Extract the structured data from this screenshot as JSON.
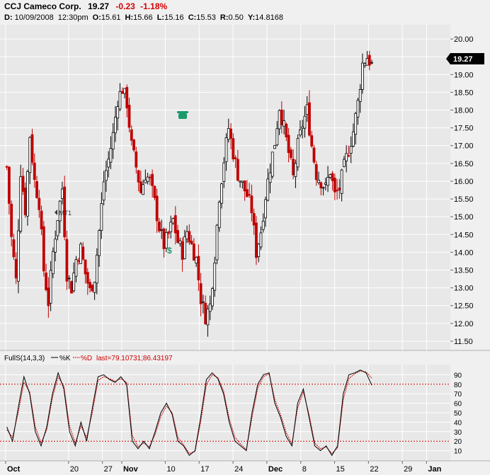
{
  "header": {
    "symbol": "CCJ",
    "name": "Cameco Corp.",
    "last": "19.27",
    "change": "-0.23",
    "change_pct": "-1.18%",
    "date_label": "D:",
    "date": "10/09/2008",
    "time": "12:30pm",
    "open_label": "O:",
    "open": "15.61",
    "high_label": "H:",
    "high": "15.66",
    "low_label": "L:",
    "low": "15.16",
    "close_label": "C:",
    "close": "15.53",
    "range_label": "R:",
    "range": "0.50",
    "y_label": "Y:",
    "y": "14.8168"
  },
  "price_badge": "19.27",
  "annotations": {
    "mt_label": "MT1"
  },
  "indicator": {
    "label": "FullS(14,3,3)",
    "k_label": "%K",
    "d_label": "%D",
    "last_label": "last=79.10731;86.43197",
    "upper_level": 80,
    "lower_level": 20
  },
  "chart_data": {
    "type": "candlestick",
    "price_axis": {
      "ylim": [
        11.3,
        20.3
      ],
      "ticks": [
        "11.50",
        "12.00",
        "12.50",
        "13.00",
        "13.50",
        "14.00",
        "14.50",
        "15.00",
        "15.50",
        "16.00",
        "16.50",
        "17.00",
        "17.50",
        "18.00",
        "18.50",
        "19.00",
        "19.50",
        "20.00"
      ]
    },
    "oscillator_axis": {
      "ylim": [
        0,
        100
      ],
      "ticks": [
        "10",
        "20",
        "30",
        "40",
        "50",
        "60",
        "70",
        "80",
        "90"
      ]
    },
    "x_ticks": [
      {
        "label": "Oct",
        "day": 0,
        "bold": true
      },
      {
        "label": "20",
        "day": 13,
        "bold": false
      },
      {
        "label": "27",
        "day": 20,
        "bold": false
      },
      {
        "label": "Nov",
        "day": 24,
        "bold": true
      },
      {
        "label": "10",
        "day": 33,
        "bold": false
      },
      {
        "label": "17",
        "day": 40,
        "bold": false
      },
      {
        "label": "24",
        "day": 47,
        "bold": false
      },
      {
        "label": "Dec",
        "day": 54,
        "bold": true
      },
      {
        "label": "8",
        "day": 61,
        "bold": false
      },
      {
        "label": "15",
        "day": 68,
        "bold": false
      },
      {
        "label": "22",
        "day": 75,
        "bold": false
      },
      {
        "label": "29",
        "day": 82,
        "bold": false
      },
      {
        "label": "Jan",
        "day": 87,
        "bold": true
      }
    ],
    "price_path": [
      [
        0,
        16.4
      ],
      [
        1,
        14.4
      ],
      [
        2,
        13.2
      ],
      [
        3,
        16.3
      ],
      [
        4,
        15.2
      ],
      [
        5,
        17.3
      ],
      [
        6,
        16.0
      ],
      [
        7,
        15.4
      ],
      [
        8,
        13.5
      ],
      [
        9,
        12.6
      ],
      [
        10,
        14.0
      ],
      [
        11,
        15.0
      ],
      [
        12,
        15.8
      ],
      [
        13,
        13.4
      ],
      [
        14,
        13.0
      ],
      [
        15,
        13.8
      ],
      [
        16,
        14.1
      ],
      [
        17,
        13.4
      ],
      [
        18,
        12.9
      ],
      [
        19,
        13.3
      ],
      [
        20,
        14.6
      ],
      [
        21,
        16.0
      ],
      [
        22,
        16.6
      ],
      [
        23,
        17.3
      ],
      [
        24,
        18.3
      ],
      [
        25,
        18.6
      ],
      [
        26,
        18.2
      ],
      [
        27,
        17.0
      ],
      [
        28,
        16.4
      ],
      [
        29,
        15.7
      ],
      [
        30,
        16.2
      ],
      [
        31,
        16.0
      ],
      [
        32,
        15.4
      ],
      [
        33,
        14.7
      ],
      [
        34,
        14.2
      ],
      [
        35,
        14.5
      ],
      [
        36,
        14.9
      ],
      [
        37,
        14.3
      ],
      [
        38,
        14.0
      ],
      [
        39,
        14.6
      ],
      [
        40,
        14.2
      ],
      [
        41,
        13.8
      ],
      [
        42,
        12.7
      ],
      [
        43,
        12.2
      ],
      [
        44,
        12.5
      ],
      [
        45,
        13.9
      ],
      [
        46,
        15.6
      ],
      [
        47,
        16.6
      ],
      [
        48,
        17.5
      ],
      [
        49,
        16.8
      ],
      [
        50,
        16.2
      ],
      [
        51,
        15.9
      ],
      [
        52,
        15.6
      ],
      [
        53,
        15.2
      ],
      [
        54,
        14.0
      ],
      [
        55,
        14.6
      ],
      [
        56,
        15.6
      ],
      [
        57,
        16.4
      ],
      [
        58,
        17.1
      ],
      [
        59,
        18.1
      ],
      [
        60,
        17.5
      ],
      [
        61,
        16.8
      ],
      [
        62,
        16.1
      ],
      [
        63,
        17.0
      ],
      [
        64,
        17.6
      ],
      [
        65,
        18.0
      ],
      [
        66,
        17.0
      ],
      [
        67,
        16.2
      ],
      [
        68,
        16.0
      ],
      [
        69,
        15.8
      ],
      [
        70,
        16.3
      ],
      [
        71,
        15.6
      ],
      [
        72,
        15.8
      ],
      [
        73,
        16.4
      ],
      [
        74,
        16.9
      ],
      [
        75,
        17.4
      ],
      [
        76,
        18.2
      ],
      [
        77,
        19.3
      ],
      [
        78,
        19.5
      ],
      [
        79,
        19.27
      ]
    ],
    "osc_k": [
      [
        0,
        35
      ],
      [
        1,
        20
      ],
      [
        2,
        55
      ],
      [
        3,
        88
      ],
      [
        4,
        70
      ],
      [
        5,
        30
      ],
      [
        6,
        15
      ],
      [
        7,
        35
      ],
      [
        8,
        70
      ],
      [
        9,
        92
      ],
      [
        10,
        75
      ],
      [
        11,
        30
      ],
      [
        12,
        15
      ],
      [
        13,
        40
      ],
      [
        14,
        20
      ],
      [
        15,
        55
      ],
      [
        16,
        88
      ],
      [
        17,
        90
      ],
      [
        18,
        85
      ],
      [
        19,
        82
      ],
      [
        20,
        88
      ],
      [
        21,
        80
      ],
      [
        22,
        20
      ],
      [
        23,
        12
      ],
      [
        24,
        20
      ],
      [
        25,
        12
      ],
      [
        26,
        30
      ],
      [
        27,
        50
      ],
      [
        28,
        60
      ],
      [
        29,
        48
      ],
      [
        30,
        20
      ],
      [
        31,
        15
      ],
      [
        32,
        5
      ],
      [
        33,
        10
      ],
      [
        34,
        45
      ],
      [
        35,
        85
      ],
      [
        36,
        92
      ],
      [
        37,
        86
      ],
      [
        38,
        70
      ],
      [
        39,
        40
      ],
      [
        40,
        20
      ],
      [
        41,
        15
      ],
      [
        42,
        10
      ],
      [
        43,
        50
      ],
      [
        44,
        80
      ],
      [
        45,
        90
      ],
      [
        46,
        92
      ],
      [
        47,
        60
      ],
      [
        48,
        45
      ],
      [
        49,
        25
      ],
      [
        50,
        15
      ],
      [
        51,
        60
      ],
      [
        52,
        75
      ],
      [
        53,
        45
      ],
      [
        54,
        15
      ],
      [
        55,
        10
      ],
      [
        56,
        15
      ],
      [
        57,
        5
      ],
      [
        58,
        15
      ],
      [
        59,
        70
      ],
      [
        60,
        90
      ],
      [
        61,
        92
      ],
      [
        62,
        95
      ],
      [
        63,
        92
      ],
      [
        64,
        79
      ]
    ],
    "osc_d": [
      [
        0,
        32
      ],
      [
        1,
        24
      ],
      [
        2,
        50
      ],
      [
        3,
        82
      ],
      [
        4,
        72
      ],
      [
        5,
        35
      ],
      [
        6,
        18
      ],
      [
        7,
        32
      ],
      [
        8,
        66
      ],
      [
        9,
        88
      ],
      [
        10,
        78
      ],
      [
        11,
        36
      ],
      [
        12,
        18
      ],
      [
        13,
        36
      ],
      [
        14,
        24
      ],
      [
        15,
        50
      ],
      [
        16,
        84
      ],
      [
        17,
        88
      ],
      [
        18,
        86
      ],
      [
        19,
        83
      ],
      [
        20,
        86
      ],
      [
        21,
        82
      ],
      [
        22,
        26
      ],
      [
        23,
        14
      ],
      [
        24,
        18
      ],
      [
        25,
        14
      ],
      [
        26,
        27
      ],
      [
        27,
        46
      ],
      [
        28,
        57
      ],
      [
        29,
        50
      ],
      [
        30,
        24
      ],
      [
        31,
        16
      ],
      [
        32,
        7
      ],
      [
        33,
        9
      ],
      [
        34,
        40
      ],
      [
        35,
        80
      ],
      [
        36,
        90
      ],
      [
        37,
        87
      ],
      [
        38,
        73
      ],
      [
        39,
        44
      ],
      [
        40,
        24
      ],
      [
        41,
        17
      ],
      [
        42,
        11
      ],
      [
        43,
        45
      ],
      [
        44,
        76
      ],
      [
        45,
        88
      ],
      [
        46,
        91
      ],
      [
        47,
        64
      ],
      [
        48,
        48
      ],
      [
        49,
        29
      ],
      [
        50,
        17
      ],
      [
        51,
        55
      ],
      [
        52,
        72
      ],
      [
        53,
        48
      ],
      [
        54,
        18
      ],
      [
        55,
        12
      ],
      [
        56,
        14
      ],
      [
        57,
        7
      ],
      [
        58,
        13
      ],
      [
        59,
        64
      ],
      [
        60,
        86
      ],
      [
        61,
        91
      ],
      [
        62,
        94
      ],
      [
        63,
        93
      ],
      [
        64,
        86.4
      ]
    ],
    "colors": {
      "up": "#000000",
      "down": "#c00000",
      "k_line": "#000000",
      "d_line": "#cc0000",
      "level_line": "#cc0000",
      "badge": "#000000"
    }
  }
}
